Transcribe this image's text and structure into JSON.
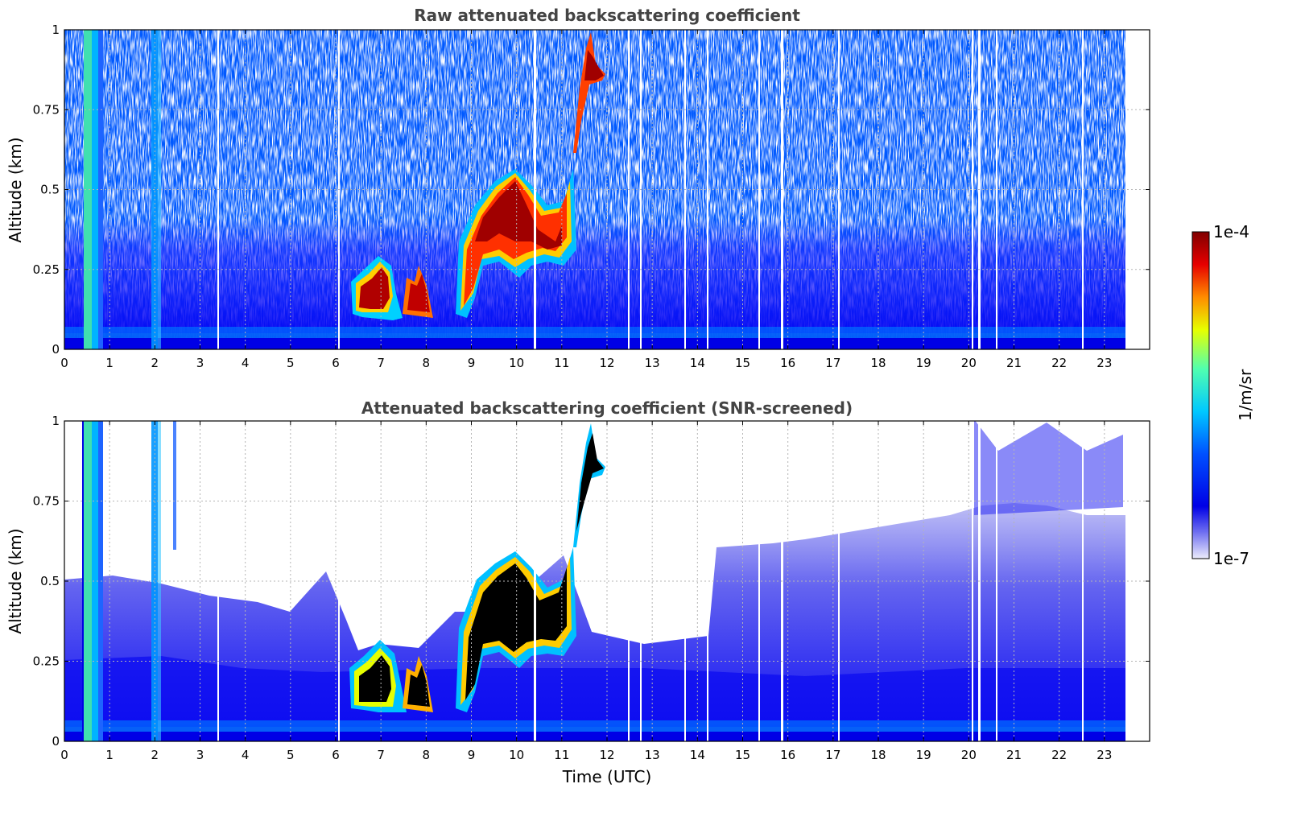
{
  "chart_data": [
    {
      "type": "heatmap",
      "title": "Raw attenuated backscattering coefficient",
      "xlabel": "",
      "ylabel": "Altitude (km)",
      "xlim": [
        0,
        24
      ],
      "ylim": [
        0,
        1
      ],
      "x_ticks": [
        "0",
        "1",
        "2",
        "3",
        "4",
        "5",
        "6",
        "7",
        "8",
        "9",
        "10",
        "11",
        "12",
        "13",
        "14",
        "15",
        "16",
        "17",
        "18",
        "19",
        "20",
        "21",
        "22",
        "23"
      ],
      "y_ticks": [
        "0",
        "0.25",
        "0.5",
        "0.75",
        "1"
      ],
      "grid": true,
      "data_end_hour": 23.5,
      "features": [
        {
          "feature": "aerosol/cloud layer",
          "x_range": [
            6.4,
            8.3
          ],
          "y_range": [
            0.1,
            0.3
          ]
        },
        {
          "feature": "cloud layer",
          "x_range": [
            8.8,
            11.2
          ],
          "y_range": [
            0.25,
            0.55
          ]
        },
        {
          "feature": "elevated layer",
          "x_range": [
            11.3,
            12.0
          ],
          "y_range": [
            0.8,
            1.0
          ]
        },
        {
          "feature": "strong column",
          "x_range": [
            0.45,
            0.9
          ],
          "y_range": [
            0,
            1
          ]
        }
      ]
    },
    {
      "type": "heatmap",
      "title": "Attenuated backscattering coefficient (SNR-screened)",
      "xlabel": "Time (UTC)",
      "ylabel": "Altitude (km)",
      "xlim": [
        0,
        24
      ],
      "ylim": [
        0,
        1
      ],
      "x_ticks": [
        "0",
        "1",
        "2",
        "3",
        "4",
        "5",
        "6",
        "7",
        "8",
        "9",
        "10",
        "11",
        "12",
        "13",
        "14",
        "15",
        "16",
        "17",
        "18",
        "19",
        "20",
        "21",
        "22",
        "23"
      ],
      "y_ticks": [
        "0",
        "0.25",
        "0.5",
        "0.75",
        "1"
      ],
      "grid": true,
      "data_end_hour": 23.5
    }
  ],
  "colorbar": {
    "label": "1/m/sr",
    "max_label": "1e-4",
    "min_label": "1e-7",
    "scale": "log",
    "range": [
      1e-07,
      0.0001
    ],
    "colormap": "jet",
    "colors": [
      "#ececfb",
      "#0000e6",
      "#0050ff",
      "#00c8ff",
      "#50ffb0",
      "#e6ff00",
      "#ff8c00",
      "#e60000",
      "#800000"
    ]
  }
}
